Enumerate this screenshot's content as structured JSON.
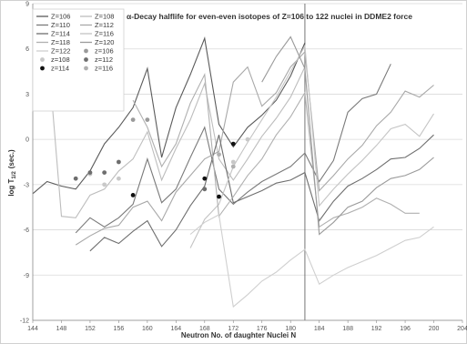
{
  "chart_data": {
    "type": "line",
    "title": "α-Decay halflife for even-even isotopes of Z=106 to 122 nuclei in DDME2 force",
    "xlabel": "Neutron No. of daughter Nuclei N",
    "ylabel": "log T",
    "ylabel_sub": "1/2",
    "ylabel_unit": "(sec.)",
    "xlim": [
      144,
      204
    ],
    "ylim": [
      -12,
      9
    ],
    "x_ticks": [
      144,
      148,
      152,
      156,
      160,
      164,
      168,
      172,
      176,
      180,
      184,
      188,
      192,
      196,
      200,
      204
    ],
    "y_ticks": [
      -12,
      -9,
      -6,
      -3,
      0,
      3,
      6,
      9
    ],
    "grid": "horizontal",
    "legend_position": "top-left",
    "reference_line_x": 182,
    "series": [
      {
        "name": "Z=106",
        "color": "#5a5a5a",
        "x": [
          144,
          146,
          148,
          150,
          152,
          154,
          156,
          158,
          160,
          162,
          164,
          166,
          168,
          170,
          172,
          174,
          176,
          178,
          180,
          182
        ],
        "y": [
          -3.6,
          -2.8,
          -3.1,
          -3.3,
          -2.1,
          -0.3,
          0.8,
          2.1,
          4.7,
          -1.2,
          2.1,
          4.3,
          6.7,
          1.0,
          -0.5,
          0.8,
          1.6,
          2.6,
          4.2,
          6.4
        ]
      },
      {
        "name": "Z=108",
        "color": "#bdbdbd",
        "x": [
          146,
          148,
          150,
          152,
          154,
          156,
          158,
          160,
          162,
          164,
          166,
          168,
          170,
          172,
          174,
          176,
          178,
          180,
          182
        ],
        "y": [
          6.5,
          -5.1,
          -5.2,
          -3.7,
          -3.3,
          -2.1,
          -1.3,
          0.5,
          -2.7,
          -0.6,
          1.3,
          3.7,
          -1.3,
          -2.7,
          -1.3,
          0.2,
          1.4,
          2.8,
          4.8
        ]
      },
      {
        "name": "Z=110",
        "color": "#7a7a7a",
        "x": [
          150,
          152,
          154,
          156,
          158,
          160,
          162,
          164,
          166,
          168,
          170,
          172,
          174,
          176,
          178,
          180,
          182,
          184,
          186,
          188,
          190,
          192,
          194
        ],
        "y": [
          -6.2,
          -5.2,
          -5.8,
          -5.2,
          -4.3,
          -1.3,
          -4.2,
          -3.3,
          -1.2,
          0.8,
          -3.3,
          -4.3,
          -3.5,
          -2.8,
          -2.3,
          -1.8,
          -0.9,
          -2.8,
          -1.4,
          1.8,
          2.7,
          3.0,
          5.0
        ]
      },
      {
        "name": "Z=112",
        "color": "#a8a8a8",
        "x": [
          150,
          152,
          154,
          156,
          158,
          160,
          162,
          164,
          166,
          168,
          170,
          172,
          174,
          176,
          178,
          180,
          182,
          184,
          186,
          188,
          190,
          192,
          194,
          196,
          198,
          200
        ],
        "y": [
          -7.0,
          -6.4,
          -5.9,
          -5.7,
          -4.5,
          -4.1,
          -5.4,
          -3.5,
          -2.4,
          -1.3,
          -0.8,
          3.8,
          4.8,
          2.2,
          3.1,
          4.8,
          5.8,
          -3.4,
          -2.4,
          -1.3,
          -0.4,
          0.9,
          1.8,
          3.2,
          2.8,
          3.6
        ]
      },
      {
        "name": "Z=114",
        "color": "#6e6e6e",
        "x": [
          152,
          154,
          156,
          158,
          160,
          162,
          164,
          166,
          168,
          170,
          172,
          174,
          176,
          178,
          180,
          182,
          184,
          186,
          188,
          190,
          192,
          194,
          196,
          198,
          200
        ],
        "y": [
          -7.4,
          -6.5,
          -6.9,
          -6.1,
          -5.4,
          -7.1,
          -6.0,
          -4.4,
          -3.1,
          0.3,
          -4.2,
          -3.8,
          -3.4,
          -2.9,
          -2.7,
          -2.2,
          -5.4,
          -4.1,
          -3.1,
          -2.6,
          -2.0,
          -1.3,
          -1.2,
          -0.6,
          0.3
        ]
      },
      {
        "name": "Z=116",
        "color": "#c4c4c4",
        "x": [
          166,
          168,
          170,
          172,
          174,
          176,
          178,
          180,
          182,
          184,
          186,
          188,
          190,
          192,
          194,
          196,
          198,
          200
        ],
        "y": [
          -7.2,
          -5.3,
          -4.3,
          -1.8,
          -0.2,
          1.3,
          2.8,
          4.5,
          6.2,
          -4.4,
          -3.3,
          -2.3,
          -1.4,
          -0.4,
          0.7,
          1.0,
          0.2,
          1.7
        ]
      },
      {
        "name": "Z=118",
        "color": "#b0b0b0",
        "x": [
          158,
          160,
          162,
          164,
          166,
          168,
          170,
          172,
          174,
          176,
          178,
          180,
          182,
          184,
          186,
          188,
          190,
          192,
          194,
          196,
          198
        ],
        "y": [
          2.6,
          0.8,
          -1.8,
          -0.3,
          2.4,
          4.3,
          -5.1,
          -3.8,
          -2.4,
          -1.3,
          0.3,
          1.5,
          3.1,
          -5.8,
          -5.2,
          -4.9,
          -4.5,
          -3.9,
          -4.3,
          -4.9,
          -4.9
        ]
      },
      {
        "name": "Z=120",
        "color": "#9a9a9a",
        "x": [
          176,
          178,
          180,
          182,
          184,
          186,
          188,
          190,
          192,
          194,
          196,
          198,
          200
        ],
        "y": [
          3.8,
          5.5,
          6.8,
          4.7,
          -6.3,
          -5.5,
          -4.5,
          -4.1,
          -3.2,
          -2.6,
          -2.4,
          -2.0,
          -1.2
        ]
      },
      {
        "name": "Z=122",
        "color": "#cfcfcf",
        "x": [
          166,
          168,
          170,
          172,
          174,
          176,
          178,
          180,
          182,
          184,
          186,
          188,
          190,
          192,
          194,
          196,
          198,
          200
        ],
        "y": [
          -6.3,
          -5.5,
          -5.0,
          -11.1,
          -10.3,
          -9.4,
          -8.8,
          -8.0,
          -7.3,
          -9.6,
          -9.0,
          -8.5,
          -8.1,
          -7.7,
          -7.2,
          -6.7,
          -6.5,
          -5.8
        ]
      }
    ],
    "points": [
      {
        "name": "z=106",
        "color": "#9a9a9a",
        "marker": "circle",
        "x": [
          158,
          160
        ],
        "y": [
          1.3,
          1.3
        ]
      },
      {
        "name": "z=108",
        "color": "#c8c8c8",
        "marker": "circle",
        "x": [
          152,
          154,
          156,
          172,
          174
        ],
        "y": [
          -2.3,
          -3.0,
          -2.6,
          -1.5,
          0.0
        ]
      },
      {
        "name": "z=112",
        "color": "#6e6e6e",
        "marker": "circle",
        "x": [
          150,
          152,
          154,
          156,
          168
        ],
        "y": [
          -2.6,
          -2.2,
          -2.2,
          -1.5,
          -3.3
        ]
      },
      {
        "name": "z=114",
        "color": "#111111",
        "marker": "circle",
        "x": [
          158,
          168,
          170,
          172
        ],
        "y": [
          -3.7,
          -2.6,
          -3.8,
          -0.3
        ]
      },
      {
        "name": "z=116",
        "color": "#b0b0b0",
        "marker": "circle",
        "x": [
          170,
          172
        ],
        "y": [
          -1.0,
          -1.8
        ]
      }
    ],
    "legend_line_order": [
      "Z=106",
      "Z=108",
      "Z=110",
      "Z=112",
      "Z=114",
      "Z=116",
      "Z=118",
      "Z=120",
      "Z=122"
    ],
    "legend_point_order": [
      "z=106",
      "z=108",
      "z=112",
      "z=114",
      "z=116"
    ]
  }
}
